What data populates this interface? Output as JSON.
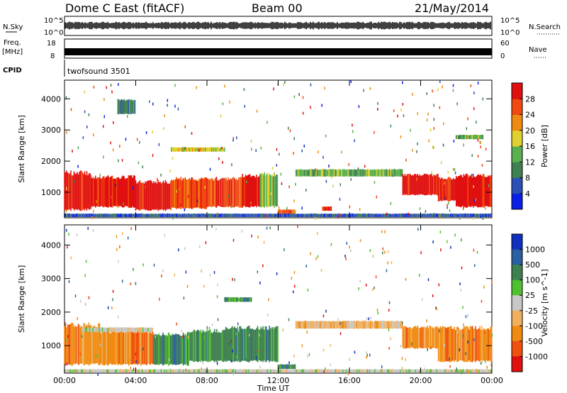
{
  "header": {
    "title": "Dome C East (fitACF)",
    "beam": "Beam 00",
    "date": "21/May/2014"
  },
  "strips": {
    "nsky_label": "N.Sky",
    "nsearch_label": "N.Search",
    "freq_label_top": "Freq.",
    "freq_label_bottom": "[MHz]",
    "nave_label": "Nave",
    "cpid_label": "CPID",
    "cpid_text": "twofsound 3501",
    "noise_ticks_left": [
      "10^5",
      "10^0"
    ],
    "noise_ticks_right": [
      "10^5",
      "10^0"
    ],
    "freq_ticks_left": [
      "18",
      "8"
    ],
    "nave_ticks_right": [
      "60",
      "0"
    ]
  },
  "chart_data": [
    {
      "type": "heatmap",
      "name": "power-panel",
      "xlabel": "",
      "ylabel": "Slant Range [km]",
      "x_ticks": [
        "00:00",
        "04:00",
        "08:00",
        "12:00",
        "16:00",
        "20:00",
        "00:00"
      ],
      "xlim_hours": [
        0,
        24
      ],
      "ylim_km": [
        180,
        4600
      ],
      "y_ticks": [
        1000,
        2000,
        3000,
        4000
      ],
      "colorbar": {
        "label": "Power [dB]",
        "ticks": [
          "28",
          "24",
          "20",
          "16",
          "12",
          "8",
          "4"
        ],
        "colors": [
          "#0a1fe6",
          "#2a50b8",
          "#3f8050",
          "#5ab050",
          "#e0d030",
          "#f08a10",
          "#f04a10",
          "#e01010"
        ]
      },
      "bands": [
        {
          "t0": 0.0,
          "t1": 1.5,
          "r0": 400,
          "r1": 1700,
          "level": 7
        },
        {
          "t0": 1.5,
          "t1": 4.0,
          "r0": 500,
          "r1": 1550,
          "level": 7
        },
        {
          "t0": 4.0,
          "t1": 6.0,
          "r0": 400,
          "r1": 1400,
          "level": 7
        },
        {
          "t0": 6.0,
          "t1": 8.0,
          "r0": 450,
          "r1": 1500,
          "level": 6
        },
        {
          "t0": 8.0,
          "t1": 10.0,
          "r0": 500,
          "r1": 1500,
          "level": 6
        },
        {
          "t0": 10.0,
          "t1": 11.0,
          "r0": 500,
          "r1": 1600,
          "level": 7
        },
        {
          "t0": 11.0,
          "t1": 12.0,
          "r0": 500,
          "r1": 1650,
          "level": 3
        },
        {
          "t0": 12.0,
          "t1": 13.0,
          "r0": 300,
          "r1": 450,
          "level": 6
        },
        {
          "t0": 14.5,
          "t1": 15.0,
          "r0": 400,
          "r1": 550,
          "level": 7
        },
        {
          "t0": 13.0,
          "t1": 19.0,
          "r0": 1500,
          "r1": 1750,
          "level": 3
        },
        {
          "t0": 19.0,
          "t1": 21.0,
          "r0": 900,
          "r1": 1600,
          "level": 7
        },
        {
          "t0": 21.0,
          "t1": 22.0,
          "r0": 700,
          "r1": 1500,
          "level": 7
        },
        {
          "t0": 22.0,
          "t1": 24.0,
          "r0": 500,
          "r1": 1600,
          "level": 7
        },
        {
          "t0": 0.0,
          "t1": 24.0,
          "r0": 190,
          "r1": 320,
          "level": 1
        },
        {
          "t0": 22.0,
          "t1": 23.5,
          "r0": 2700,
          "r1": 2850,
          "level": 3
        },
        {
          "t0": 6.0,
          "t1": 9.0,
          "r0": 2300,
          "r1": 2450,
          "level": 4
        },
        {
          "t0": 3.0,
          "t1": 4.0,
          "r0": 3500,
          "r1": 4000,
          "level": 2
        }
      ]
    },
    {
      "type": "heatmap",
      "name": "velocity-panel",
      "xlabel": "Time UT",
      "ylabel": "Slant Range [km]",
      "x_ticks": [
        "00:00",
        "04:00",
        "08:00",
        "12:00",
        "16:00",
        "20:00",
        "00:00"
      ],
      "xlim_hours": [
        0,
        24
      ],
      "ylim_km": [
        180,
        4600
      ],
      "y_ticks": [
        1000,
        2000,
        3000,
        4000
      ],
      "colorbar": {
        "label": "Velocity [m s^-1]",
        "ticks": [
          "1000",
          "500",
          "100",
          "25",
          "-25",
          "-100",
          "-500",
          "-1000"
        ],
        "colors": [
          "#e01010",
          "#f05010",
          "#f08a10",
          "#f0b060",
          "#c8c8c8",
          "#50c030",
          "#3f8050",
          "#2a60a0",
          "#1030c0"
        ]
      },
      "bands": [
        {
          "t0": 0.0,
          "t1": 2.0,
          "r0": 400,
          "r1": 1700,
          "level": 2
        },
        {
          "t0": 2.0,
          "t1": 5.0,
          "r0": 400,
          "r1": 1500,
          "level": 2
        },
        {
          "t0": 5.0,
          "t1": 7.0,
          "r0": 400,
          "r1": 1400,
          "level": 6
        },
        {
          "t0": 7.0,
          "t1": 9.0,
          "r0": 500,
          "r1": 1500,
          "level": 6
        },
        {
          "t0": 9.0,
          "t1": 12.0,
          "r0": 500,
          "r1": 1600,
          "level": 6
        },
        {
          "t0": 12.0,
          "t1": 13.0,
          "r0": 300,
          "r1": 450,
          "level": 6
        },
        {
          "t0": 13.0,
          "t1": 19.0,
          "r0": 1500,
          "r1": 1750,
          "level": 3
        },
        {
          "t0": 19.0,
          "t1": 21.0,
          "r0": 900,
          "r1": 1600,
          "level": 2
        },
        {
          "t0": 21.0,
          "t1": 24.0,
          "r0": 500,
          "r1": 1600,
          "level": 2
        },
        {
          "t0": 1.0,
          "t1": 5.0,
          "r0": 1400,
          "r1": 1550,
          "level": 4
        },
        {
          "t0": 9.0,
          "t1": 10.5,
          "r0": 2300,
          "r1": 2450,
          "level": 6
        },
        {
          "t0": 0.0,
          "t1": 24.0,
          "r0": 190,
          "r1": 300,
          "level": 4
        }
      ]
    }
  ]
}
